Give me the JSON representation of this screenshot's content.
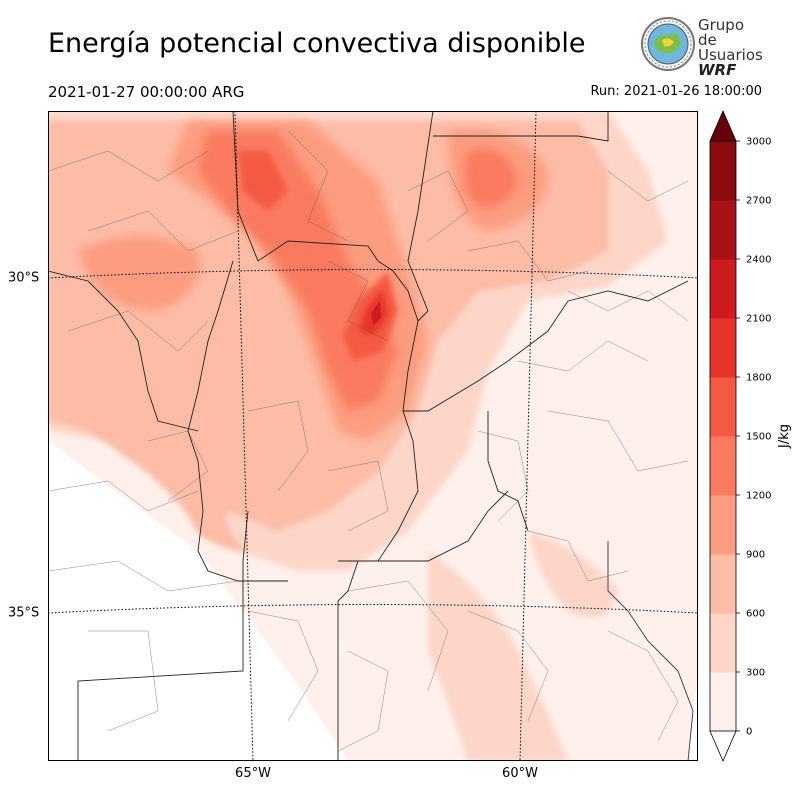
{
  "title": "Energía potencial convectiva disponible",
  "valid_time": "2021-01-27 00:00:00 ARG",
  "run_time": "Run: 2021-01-26 18:00:00",
  "logo": {
    "line1": "Grupo de",
    "line2": "Usuarios",
    "line3": "WRF",
    "icon": "globe-seal-icon"
  },
  "axes": {
    "lat_labels": [
      "30°S",
      "35°S"
    ],
    "lon_labels": [
      "65°W",
      "60°W"
    ]
  },
  "colorbar": {
    "label": "J/kg",
    "ticks": [
      "0",
      "300",
      "600",
      "900",
      "1200",
      "1500",
      "1800",
      "2100",
      "2400",
      "2700",
      "3000"
    ],
    "levels": [
      0,
      300,
      600,
      900,
      1200,
      1500,
      1800,
      2100,
      2400,
      2700,
      3000
    ],
    "colors": [
      "#fff0ec",
      "#fdd6c9",
      "#fcbca6",
      "#fc9c80",
      "#f97a5e",
      "#f45a42",
      "#e6352b",
      "#cc1c1f",
      "#a91116",
      "#8a0b10"
    ],
    "extend_color": "#67000d"
  }
}
